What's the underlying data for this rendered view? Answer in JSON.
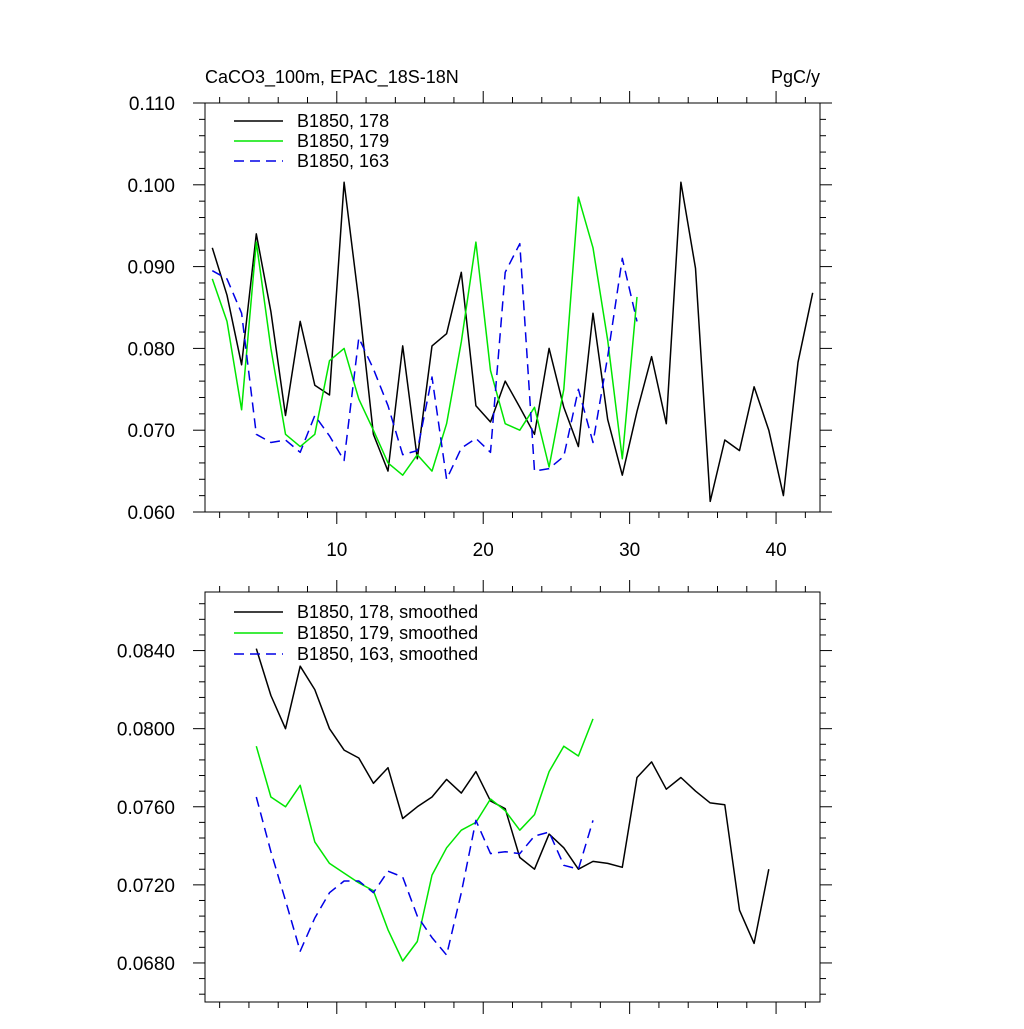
{
  "chart_data": [
    {
      "type": "line",
      "title": "CaCO3_100m, EPAC_18S-18N",
      "units": "PgC/y",
      "xlim": [
        1,
        43
      ],
      "ylim": [
        0.06,
        0.11
      ],
      "x_tick_labels": [
        "10",
        "20",
        "30",
        "40"
      ],
      "x_tick_values": [
        10,
        20,
        30,
        40
      ],
      "y_tick_labels": [
        "0.060",
        "0.070",
        "0.080",
        "0.090",
        "0.100",
        "0.110"
      ],
      "y_tick_values": [
        0.06,
        0.07,
        0.08,
        0.09,
        0.1,
        0.11
      ],
      "legend_position": "top-left",
      "series": [
        {
          "name": "B1850, 178",
          "color": "#000000",
          "style": "solid",
          "x": [
            1.5,
            2.5,
            3.5,
            4.5,
            5.5,
            6.5,
            7.5,
            8.5,
            9.5,
            10.5,
            11.5,
            12.5,
            13.5,
            14.5,
            15.5,
            16.5,
            17.5,
            18.5,
            19.5,
            20.5,
            21.5,
            22.5,
            23.5,
            24.5,
            25.5,
            26.5,
            27.5,
            28.5,
            29.5,
            30.5,
            31.5,
            32.5,
            33.5,
            34.5,
            35.5,
            36.5,
            37.5,
            38.5,
            39.5,
            40.5,
            41.5,
            42.5
          ],
          "y": [
            0.0923,
            0.0865,
            0.078,
            0.094,
            0.0845,
            0.0718,
            0.0833,
            0.0755,
            0.0743,
            0.1003,
            0.0858,
            0.0695,
            0.065,
            0.0803,
            0.0665,
            0.0803,
            0.0818,
            0.0893,
            0.073,
            0.071,
            0.076,
            0.0728,
            0.0695,
            0.08,
            0.0728,
            0.068,
            0.0843,
            0.0713,
            0.0645,
            0.0723,
            0.079,
            0.0708,
            0.1003,
            0.0898,
            0.0613,
            0.0688,
            0.0675,
            0.0753,
            0.07,
            0.062,
            0.0783,
            0.0868
          ]
        },
        {
          "name": "B1850, 179",
          "color": "#00e600",
          "style": "solid",
          "x": [
            1.5,
            2.5,
            3.5,
            4.5,
            5.5,
            6.5,
            7.5,
            8.5,
            9.5,
            10.5,
            11.5,
            12.5,
            13.5,
            14.5,
            15.5,
            16.5,
            17.5,
            18.5,
            19.5,
            20.5,
            21.5,
            22.5,
            23.5,
            24.5,
            25.5,
            26.5,
            27.5,
            28.5,
            29.5,
            30.5
          ],
          "y": [
            0.0885,
            0.0833,
            0.0725,
            0.093,
            0.08,
            0.0695,
            0.068,
            0.0695,
            0.0785,
            0.08,
            0.0738,
            0.07,
            0.066,
            0.0645,
            0.067,
            0.065,
            0.0708,
            0.0808,
            0.093,
            0.0773,
            0.0708,
            0.07,
            0.0728,
            0.0655,
            0.075,
            0.0985,
            0.0923,
            0.081,
            0.0665,
            0.0863
          ]
        },
        {
          "name": "B1850, 163",
          "color": "#0000e6",
          "style": "dashed",
          "x": [
            1.5,
            2.5,
            3.5,
            4.5,
            5.5,
            6.5,
            7.5,
            8.5,
            9.5,
            10.5,
            11.5,
            12.5,
            13.5,
            14.5,
            15.5,
            16.5,
            17.5,
            18.5,
            19.5,
            20.5,
            21.5,
            22.5,
            23.5,
            24.5,
            25.5,
            26.5,
            27.5,
            28.5,
            29.5,
            30.5
          ],
          "y": [
            0.0895,
            0.0885,
            0.0843,
            0.0695,
            0.0685,
            0.0688,
            0.0673,
            0.0718,
            0.0693,
            0.0663,
            0.0813,
            0.0775,
            0.073,
            0.067,
            0.0675,
            0.0765,
            0.064,
            0.0678,
            0.069,
            0.0673,
            0.0893,
            0.0928,
            0.065,
            0.0653,
            0.0668,
            0.075,
            0.0685,
            0.079,
            0.091,
            0.0833
          ]
        }
      ]
    },
    {
      "type": "line",
      "xlim": [
        1,
        43
      ],
      "ylim": [
        0.066,
        0.087
      ],
      "y_tick_labels": [
        "0.0680",
        "0.0720",
        "0.0760",
        "0.0800",
        "0.0840"
      ],
      "y_tick_values": [
        0.068,
        0.072,
        0.076,
        0.08,
        0.084
      ],
      "legend_position": "top-left",
      "series": [
        {
          "name": "B1850, 178, smoothed",
          "color": "#000000",
          "style": "solid",
          "x": [
            4.5,
            5.5,
            6.5,
            7.5,
            8.5,
            9.5,
            10.5,
            11.5,
            12.5,
            13.5,
            14.5,
            15.5,
            16.5,
            17.5,
            18.5,
            19.5,
            20.5,
            21.5,
            22.5,
            23.5,
            24.5,
            25.5,
            26.5,
            27.5,
            28.5,
            29.5,
            30.5,
            31.5,
            32.5,
            33.5,
            34.5,
            35.5,
            36.5,
            37.5,
            38.5,
            39.5
          ],
          "y": [
            0.0841,
            0.0817,
            0.08,
            0.0832,
            0.082,
            0.08,
            0.0789,
            0.0785,
            0.0772,
            0.078,
            0.0754,
            0.076,
            0.0765,
            0.0774,
            0.0767,
            0.0778,
            0.0763,
            0.0759,
            0.0734,
            0.0728,
            0.0746,
            0.0739,
            0.0728,
            0.0732,
            0.0731,
            0.0729,
            0.0775,
            0.0783,
            0.0769,
            0.0775,
            0.0768,
            0.0762,
            0.0761,
            0.0707,
            0.069,
            0.0728
          ]
        },
        {
          "name": "B1850, 179, smoothed",
          "color": "#00e600",
          "style": "solid",
          "x": [
            4.5,
            5.5,
            6.5,
            7.5,
            8.5,
            9.5,
            10.5,
            11.5,
            12.5,
            13.5,
            14.5,
            15.5,
            16.5,
            17.5,
            18.5,
            19.5,
            20.5,
            21.5,
            22.5,
            23.5,
            24.5,
            25.5,
            26.5,
            27.5
          ],
          "y": [
            0.0791,
            0.0765,
            0.076,
            0.0771,
            0.0742,
            0.0731,
            0.0726,
            0.0721,
            0.0717,
            0.0697,
            0.0681,
            0.0691,
            0.0725,
            0.0739,
            0.0748,
            0.0752,
            0.0764,
            0.0758,
            0.0748,
            0.0756,
            0.0778,
            0.0791,
            0.0786,
            0.0805
          ]
        },
        {
          "name": "B1850, 163, smoothed",
          "color": "#0000e6",
          "style": "dashed",
          "x": [
            4.5,
            5.5,
            6.5,
            7.5,
            8.5,
            9.5,
            10.5,
            11.5,
            12.5,
            13.5,
            14.5,
            15.5,
            16.5,
            17.5,
            18.5,
            19.5,
            20.5,
            21.5,
            22.5,
            23.5,
            24.5,
            25.5,
            26.5,
            27.5
          ],
          "y": [
            0.0765,
            0.0737,
            0.0712,
            0.0686,
            0.0703,
            0.0716,
            0.0722,
            0.0722,
            0.0716,
            0.0727,
            0.0724,
            0.0704,
            0.0693,
            0.0684,
            0.0716,
            0.0753,
            0.0736,
            0.0737,
            0.0736,
            0.0745,
            0.0747,
            0.073,
            0.0728,
            0.0753
          ]
        }
      ]
    }
  ]
}
